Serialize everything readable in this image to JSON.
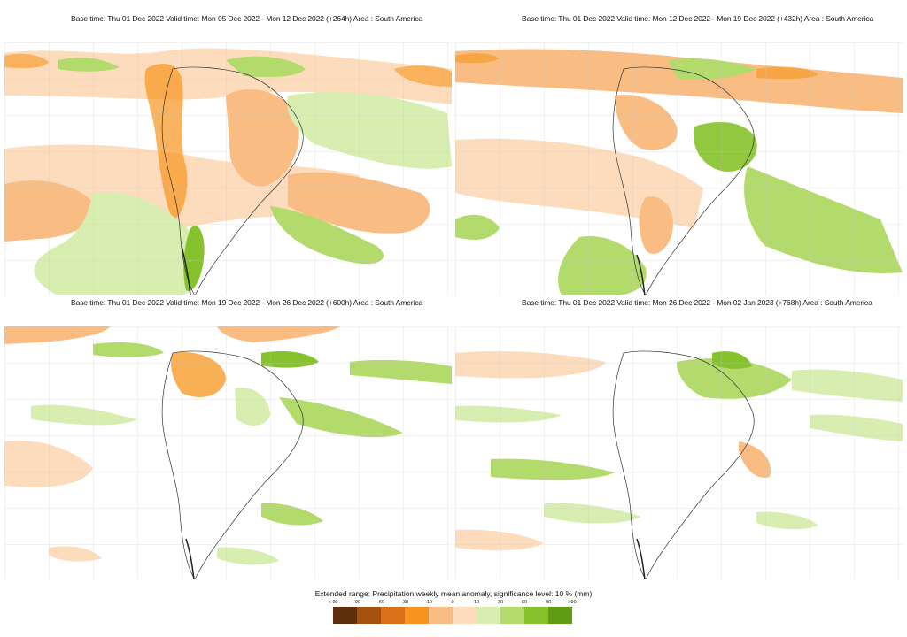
{
  "panels": [
    {
      "title": "Base time: Thu 01 Dec 2022 Valid time: Mon 05 Dec 2022 - Mon 12 Dec 2022 (+264h) Area : South America"
    },
    {
      "title": "Base time: Thu 01 Dec 2022 Valid time: Mon 12 Dec 2022 - Mon 19 Dec 2022 (+432h) Area : South America"
    },
    {
      "title": "Base time: Thu 01 Dec 2022 Valid time: Mon 19 Dec 2022 - Mon 26 Dec 2022 (+600h) Area : South America"
    },
    {
      "title": "Base time: Thu 01 Dec 2022 Valid time: Mon 26 Dec 2022 - Mon 02 Jan 2023 (+768h) Area : South America"
    }
  ],
  "legend": {
    "title": "Extended range: Precipitation weekly mean anomaly, significance level: 10 % (mm)",
    "labels": [
      "<-90",
      "-90",
      "-60",
      "-30",
      "-10",
      "0",
      "10",
      "30",
      "60",
      "90",
      ">90"
    ],
    "colors": [
      "#5e2f0a",
      "#a4510f",
      "#d9711a",
      "#f7941d",
      "#f9bd84",
      "#fcdcbc",
      "#d8eeb0",
      "#b2db6c",
      "#86c22b",
      "#5f9c13",
      "#44700f"
    ]
  }
}
